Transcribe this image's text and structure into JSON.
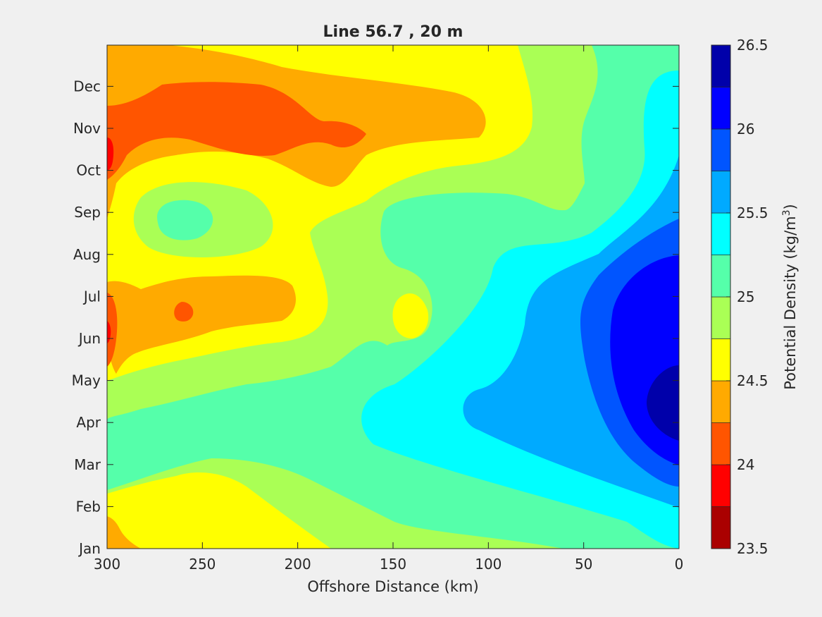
{
  "chart_data": {
    "type": "heatmap",
    "subtype": "filled-contour",
    "title": "Line 56.7 , 20 m",
    "xlabel": "Offshore Distance (km)",
    "x_axis": {
      "reversed": true,
      "range": [
        300,
        0
      ],
      "ticks": [
        300,
        250,
        200,
        150,
        100,
        50,
        0
      ],
      "tick_labels": [
        "300",
        "250",
        "200",
        "150",
        "100",
        "50",
        "0"
      ]
    },
    "y_axis": {
      "range_months": [
        1,
        12.98
      ],
      "tick_labels": [
        "Jan",
        "Feb",
        "Mar",
        "Apr",
        "May",
        "Jun",
        "Jul",
        "Aug",
        "Sep",
        "Oct",
        "Nov",
        "Dec"
      ]
    },
    "colorbar": {
      "label": "Potential Density (kg/m",
      "label_superscript": "3",
      "label_close": ")",
      "range": [
        23.5,
        26.5
      ],
      "ticks": [
        "23.5",
        "24",
        "24.5",
        "25",
        "25.5",
        "26",
        "26.5"
      ],
      "levels": [
        {
          "from": 23.5,
          "to": 23.75,
          "color": "#AA0000"
        },
        {
          "from": 23.75,
          "to": 24.0,
          "color": "#FF0000"
        },
        {
          "from": 24.0,
          "to": 24.25,
          "color": "#FF5500"
        },
        {
          "from": 24.25,
          "to": 24.5,
          "color": "#FFAA00"
        },
        {
          "from": 24.5,
          "to": 24.75,
          "color": "#FFFF00"
        },
        {
          "from": 24.75,
          "to": 25.0,
          "color": "#AAFF55"
        },
        {
          "from": 25.0,
          "to": 25.25,
          "color": "#55FFAA"
        },
        {
          "from": 25.25,
          "to": 25.5,
          "color": "#00FFFF"
        },
        {
          "from": 25.5,
          "to": 25.75,
          "color": "#00AAFF"
        },
        {
          "from": 25.75,
          "to": 26.0,
          "color": "#0055FF"
        },
        {
          "from": 26.0,
          "to": 26.25,
          "color": "#0000FF"
        },
        {
          "from": 26.25,
          "to": 26.5,
          "color": "#0000AA"
        }
      ]
    },
    "field_features": [
      {
        "region": "nearshore (0-30 km), Apr-Jun",
        "value": 26.35,
        "description": "densest core"
      },
      {
        "region": "nearshore (0-60 km), Mar-Aug",
        "value": 26.1
      },
      {
        "region": "offshore 160-300 km, Oct-Nov",
        "value": 24.1,
        "description": "light water band"
      },
      {
        "region": "300 km, Oct-Nov",
        "value": 23.9
      },
      {
        "region": "300 km, Jun-Jul",
        "value": 23.9
      },
      {
        "region": "260 km, Jul",
        "value": 24.1
      },
      {
        "region": "265 km, Sep",
        "value": 25.1
      },
      {
        "region": "140 km, Jun-Jul",
        "value": 24.6
      },
      {
        "region": "200-300 km, Jan-Feb",
        "value": 24.6
      }
    ]
  }
}
